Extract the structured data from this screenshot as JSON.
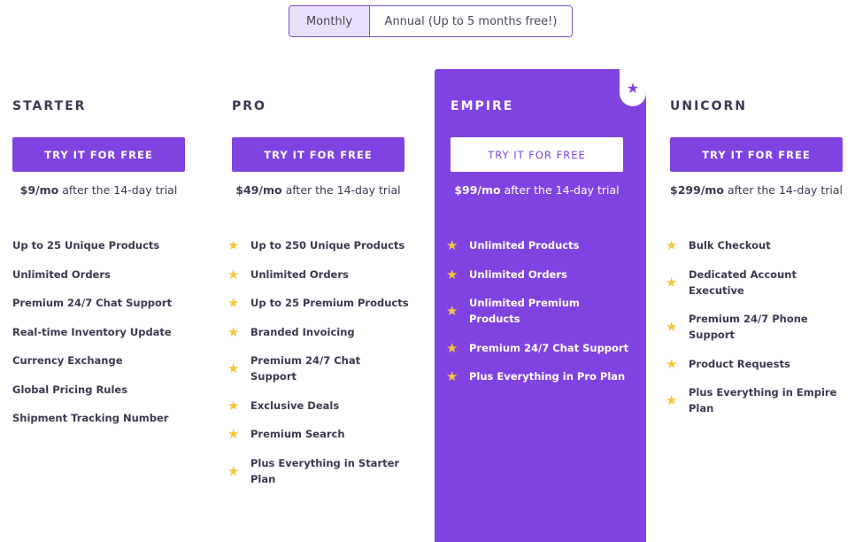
{
  "billing_toggle": {
    "monthly": "Monthly",
    "annual": "Annual (Up to 5 months free!)",
    "selected": "Monthly"
  },
  "colors": {
    "accent": "#8043e2",
    "star": "#f8c53a"
  },
  "plans": [
    {
      "name": "STARTER",
      "cta": "TRY IT FOR FREE",
      "price": "$9/mo",
      "price_suffix": " after the 14-day trial",
      "features": [
        "Up to 25 Unique Products",
        "Unlimited Orders",
        "Premium 24/7 Chat Support",
        "Real-time Inventory Update",
        "Currency Exchange",
        "Global Pricing Rules",
        "Shipment Tracking Number"
      ]
    },
    {
      "name": "PRO",
      "cta": "TRY IT FOR FREE",
      "price": "$49/mo",
      "price_suffix": " after the 14-day trial",
      "features": [
        "Up to 250 Unique Products",
        "Unlimited Orders",
        "Up to 25 Premium Products",
        "Branded Invoicing",
        "Premium 24/7 Chat Support",
        "Exclusive Deals",
        "Premium Search",
        "Plus Everything in Starter Plan"
      ]
    },
    {
      "name": "EMPIRE",
      "cta": "TRY IT FOR FREE",
      "price": "$99/mo",
      "price_suffix": " after the 14-day trial",
      "featured": true,
      "features": [
        "Unlimited Products",
        "Unlimited Orders",
        "Unlimited Premium Products",
        "Premium 24/7 Chat Support",
        "Plus Everything in Pro Plan"
      ]
    },
    {
      "name": "UNICORN",
      "cta": "TRY IT FOR FREE",
      "price": "$299/mo",
      "price_suffix": " after the 14-day trial",
      "features": [
        "Bulk Checkout",
        "Dedicated Account Executive",
        "Premium 24/7 Phone Support",
        "Product Requests",
        "Plus Everything in Empire Plan"
      ]
    }
  ]
}
